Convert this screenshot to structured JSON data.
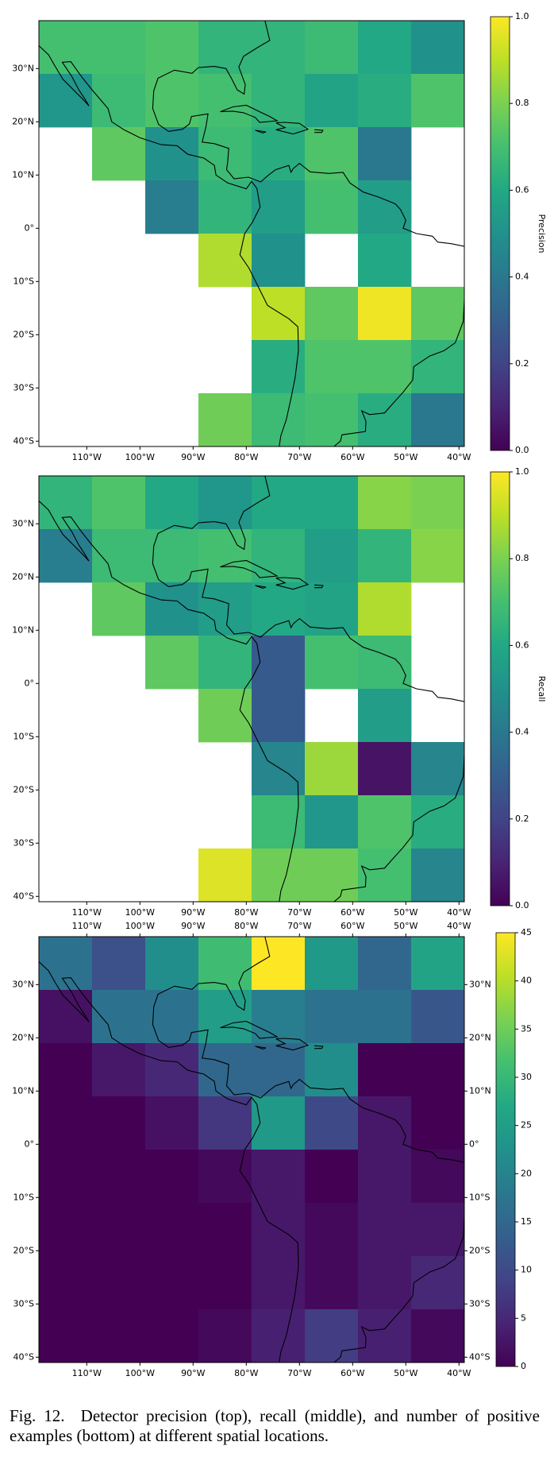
{
  "chart_data": [
    {
      "type": "heatmap",
      "colorbar_label": "Precision",
      "cmap": "viridis",
      "xbins": [
        -119,
        -109,
        -99,
        -89,
        -79,
        -69,
        -59,
        -49,
        -39
      ],
      "ybins": [
        39,
        29,
        19,
        9,
        -1,
        -11,
        -21,
        -31,
        -41
      ],
      "values": [
        [
          0.7,
          0.7,
          0.72,
          0.65,
          0.65,
          0.68,
          0.6,
          0.5
        ],
        [
          0.52,
          0.68,
          0.72,
          0.7,
          0.65,
          0.58,
          0.62,
          0.72
        ],
        [
          null,
          0.75,
          0.5,
          0.68,
          0.62,
          0.72,
          0.4,
          null
        ],
        [
          null,
          null,
          0.42,
          0.65,
          0.55,
          0.7,
          0.55,
          null
        ],
        [
          null,
          null,
          null,
          0.88,
          0.5,
          null,
          0.6,
          null
        ],
        [
          null,
          null,
          null,
          null,
          0.9,
          0.75,
          0.98,
          0.75
        ],
        [
          null,
          null,
          null,
          null,
          0.62,
          0.72,
          0.72,
          0.65
        ],
        [
          null,
          null,
          null,
          0.78,
          0.68,
          0.7,
          0.62,
          0.4
        ]
      ],
      "xlim": [
        -119,
        -39
      ],
      "ylim": [
        -41,
        39
      ],
      "xticks": [
        {
          "value": -110,
          "label": "110°W"
        },
        {
          "value": -100,
          "label": "100°W"
        },
        {
          "value": -90,
          "label": "90°W"
        },
        {
          "value": -80,
          "label": "80°W"
        },
        {
          "value": -70,
          "label": "70°W"
        },
        {
          "value": -60,
          "label": "60°W"
        },
        {
          "value": -50,
          "label": "50°W"
        },
        {
          "value": -40,
          "label": "40°W"
        }
      ],
      "yticks": [
        {
          "value": 30,
          "label": "30°N"
        },
        {
          "value": 20,
          "label": "20°N"
        },
        {
          "value": 10,
          "label": "10°N"
        },
        {
          "value": 0,
          "label": "0°"
        },
        {
          "value": -10,
          "label": "10°S"
        },
        {
          "value": -20,
          "label": "20°S"
        },
        {
          "value": -30,
          "label": "30°S"
        },
        {
          "value": -40,
          "label": "40°S"
        }
      ],
      "clim": [
        0,
        1
      ],
      "cticks": [
        {
          "value": 0,
          "label": "0.0"
        },
        {
          "value": 0.2,
          "label": "0.2"
        },
        {
          "value": 0.4,
          "label": "0.4"
        },
        {
          "value": 0.6,
          "label": "0.6"
        },
        {
          "value": 0.8,
          "label": "0.8"
        },
        {
          "value": 1,
          "label": "1.0"
        }
      ],
      "mirror_ticks": false
    },
    {
      "type": "heatmap",
      "colorbar_label": "Recall",
      "cmap": "viridis",
      "xbins": [
        -119,
        -109,
        -99,
        -89,
        -79,
        -69,
        -59,
        -49,
        -39
      ],
      "ybins": [
        39,
        29,
        19,
        9,
        -1,
        -11,
        -21,
        -31,
        -41
      ],
      "values": [
        [
          0.65,
          0.72,
          0.6,
          0.52,
          0.6,
          0.6,
          0.82,
          0.8
        ],
        [
          0.42,
          0.68,
          0.68,
          0.7,
          0.65,
          0.55,
          0.65,
          0.82
        ],
        [
          null,
          0.75,
          0.5,
          0.55,
          0.6,
          0.58,
          0.88,
          null
        ],
        [
          null,
          null,
          0.75,
          0.65,
          0.28,
          0.7,
          0.68,
          null
        ],
        [
          null,
          null,
          null,
          0.78,
          0.28,
          null,
          0.55,
          null
        ],
        [
          null,
          null,
          null,
          null,
          0.45,
          0.85,
          0.05,
          0.45
        ],
        [
          null,
          null,
          null,
          null,
          0.68,
          0.52,
          0.72,
          0.62
        ],
        [
          null,
          null,
          null,
          0.95,
          0.78,
          0.78,
          0.7,
          0.45
        ]
      ],
      "xlim": [
        -119,
        -39
      ],
      "ylim": [
        -41,
        39
      ],
      "xticks": [
        {
          "value": -110,
          "label": "110°W"
        },
        {
          "value": -100,
          "label": "100°W"
        },
        {
          "value": -90,
          "label": "90°W"
        },
        {
          "value": -80,
          "label": "80°W"
        },
        {
          "value": -70,
          "label": "70°W"
        },
        {
          "value": -60,
          "label": "60°W"
        },
        {
          "value": -50,
          "label": "50°W"
        },
        {
          "value": -40,
          "label": "40°W"
        }
      ],
      "yticks": [
        {
          "value": 30,
          "label": "30°N"
        },
        {
          "value": 20,
          "label": "20°N"
        },
        {
          "value": 10,
          "label": "10°N"
        },
        {
          "value": 0,
          "label": "0°"
        },
        {
          "value": -10,
          "label": "10°S"
        },
        {
          "value": -20,
          "label": "20°S"
        },
        {
          "value": -30,
          "label": "30°S"
        },
        {
          "value": -40,
          "label": "40°S"
        }
      ],
      "clim": [
        0,
        1
      ],
      "cticks": [
        {
          "value": 0,
          "label": "0.0"
        },
        {
          "value": 0.2,
          "label": "0.2"
        },
        {
          "value": 0.4,
          "label": "0.4"
        },
        {
          "value": 0.6,
          "label": "0.6"
        },
        {
          "value": 0.8,
          "label": "0.8"
        },
        {
          "value": 1,
          "label": "1.0"
        }
      ],
      "mirror_ticks": false
    },
    {
      "type": "heatmap",
      "cmap": "viridis",
      "xbins": [
        -119,
        -109,
        -99,
        -89,
        -79,
        -69,
        -59,
        -49,
        -39
      ],
      "ybins": [
        39,
        29,
        19,
        9,
        -1,
        -11,
        -21,
        -31,
        -41
      ],
      "values": [
        [
          17,
          11,
          22,
          31,
          45,
          24,
          15,
          26
        ],
        [
          2,
          17,
          17,
          25,
          19,
          17,
          17,
          12
        ],
        [
          0,
          3,
          5,
          15,
          15,
          22,
          0,
          0
        ],
        [
          0,
          0,
          2,
          7,
          24,
          10,
          3,
          0
        ],
        [
          0,
          0,
          0,
          1,
          3,
          0,
          3,
          1
        ],
        [
          0,
          0,
          0,
          0,
          3,
          1,
          3,
          3
        ],
        [
          0,
          0,
          0,
          0,
          3,
          1,
          3,
          5
        ],
        [
          0,
          0,
          0,
          1,
          4,
          8,
          4,
          1
        ]
      ],
      "xlim": [
        -119,
        -39
      ],
      "ylim": [
        -41,
        39
      ],
      "xticks": [
        {
          "value": -110,
          "label": "110°W"
        },
        {
          "value": -100,
          "label": "100°W"
        },
        {
          "value": -90,
          "label": "90°W"
        },
        {
          "value": -80,
          "label": "80°W"
        },
        {
          "value": -70,
          "label": "70°W"
        },
        {
          "value": -60,
          "label": "60°W"
        },
        {
          "value": -50,
          "label": "50°W"
        },
        {
          "value": -40,
          "label": "40°W"
        }
      ],
      "yticks": [
        {
          "value": 30,
          "label": "30°N"
        },
        {
          "value": 20,
          "label": "20°N"
        },
        {
          "value": 10,
          "label": "10°N"
        },
        {
          "value": 0,
          "label": "0°"
        },
        {
          "value": -10,
          "label": "10°S"
        },
        {
          "value": -20,
          "label": "20°S"
        },
        {
          "value": -30,
          "label": "30°S"
        },
        {
          "value": -40,
          "label": "40°S"
        }
      ],
      "clim": [
        0,
        45
      ],
      "cticks": [
        0,
        5,
        10,
        15,
        20,
        25,
        30,
        35,
        40,
        45
      ],
      "mirror_ticks": true
    }
  ],
  "caption": "Fig. 12.  Detector precision (top), recall (middle), and number of positive examples (bottom) at different spatial locations."
}
